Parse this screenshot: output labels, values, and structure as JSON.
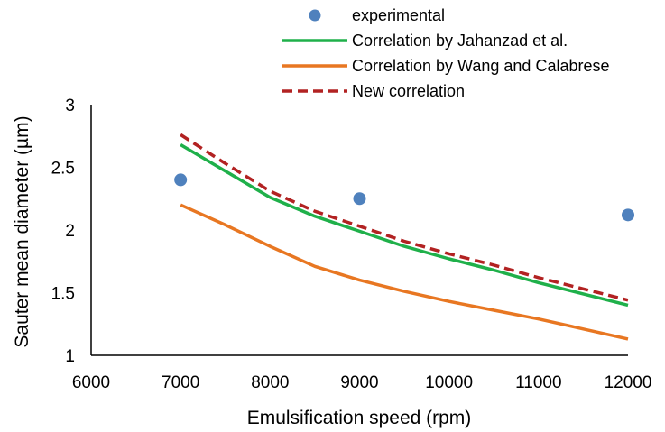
{
  "chart_data": {
    "type": "line",
    "title": "",
    "xlabel": "Emulsification speed (rpm)",
    "ylabel": "Sauter mean diameter (µm)",
    "xlim": [
      6000,
      12000
    ],
    "ylim": [
      1,
      3
    ],
    "x_ticks": [
      "6000",
      "7000",
      "8000",
      "9000",
      "10000",
      "11000",
      "12000"
    ],
    "y_ticks": [
      "1",
      "1.5",
      "2",
      "2.5",
      "3"
    ],
    "grid": false,
    "legend_position": "top",
    "series": [
      {
        "name": "experimental",
        "kind": "scatter",
        "color": "#4f81bd",
        "x": [
          7000,
          9000,
          12000
        ],
        "y": [
          2.4,
          2.25,
          2.12
        ]
      },
      {
        "name": "Correlation by Jahanzad et al.",
        "kind": "line",
        "style": "solid",
        "color": "#1fb04a",
        "x": [
          7000,
          7500,
          8000,
          8500,
          9000,
          9500,
          10000,
          10500,
          11000,
          11500,
          12000
        ],
        "y": [
          2.68,
          2.47,
          2.26,
          2.11,
          1.99,
          1.87,
          1.77,
          1.68,
          1.58,
          1.49,
          1.4
        ]
      },
      {
        "name": "Correlation by Wang and Calabrese",
        "kind": "line",
        "style": "solid",
        "color": "#e87722",
        "x": [
          7000,
          7500,
          8000,
          8500,
          9000,
          9500,
          10000,
          10500,
          11000,
          11500,
          12000
        ],
        "y": [
          2.2,
          2.04,
          1.87,
          1.71,
          1.6,
          1.51,
          1.43,
          1.36,
          1.29,
          1.21,
          1.13
        ]
      },
      {
        "name": "New correlation",
        "kind": "line",
        "style": "dashed",
        "color": "#b22222",
        "x": [
          7000,
          7500,
          8000,
          8500,
          9000,
          9500,
          10000,
          10500,
          11000,
          11500,
          12000
        ],
        "y": [
          2.76,
          2.53,
          2.31,
          2.15,
          2.03,
          1.91,
          1.81,
          1.72,
          1.62,
          1.53,
          1.44
        ]
      }
    ]
  }
}
